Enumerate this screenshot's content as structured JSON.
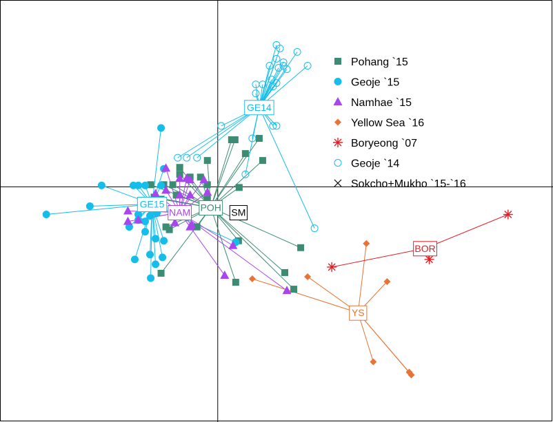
{
  "chart_data": {
    "type": "scatter",
    "title": "",
    "xlabel": "",
    "ylabel": "",
    "xlim": [
      -3.15,
      4.85
    ],
    "ylim": [
      -3.4,
      2.7
    ],
    "axes_lines_at": [
      0,
      0
    ],
    "legend_position": "top-right",
    "series": [
      {
        "name": "Pohang `15",
        "color": "#3b8c72",
        "marker": "square",
        "centroid": {
          "label": "POH",
          "x": -0.1,
          "y": -0.3
        },
        "points": [
          [
            0.2,
            0.68
          ],
          [
            0.6,
            0.7
          ],
          [
            0.4,
            0.48
          ],
          [
            0.65,
            0.38
          ],
          [
            -0.15,
            0.38
          ],
          [
            0.31,
            -0.01
          ],
          [
            -0.97,
            0.03
          ],
          [
            -0.78,
            0.03
          ],
          [
            -0.65,
            0.03
          ],
          [
            -0.6,
            -0.12
          ],
          [
            -0.4,
            0.14
          ],
          [
            -0.25,
            0.14
          ],
          [
            -0.55,
            0.28
          ],
          [
            -0.55,
            0.18
          ],
          [
            -0.82,
            -0.18
          ],
          [
            -0.92,
            -0.15
          ],
          [
            -0.75,
            -0.58
          ],
          [
            -0.7,
            -0.62
          ],
          [
            -0.3,
            -0.58
          ],
          [
            -0.15,
            -0.18
          ],
          [
            0.25,
            0.68
          ],
          [
            0.3,
            -0.78
          ],
          [
            1.2,
            -0.88
          ],
          [
            0.97,
            -1.24
          ],
          [
            1.1,
            -1.48
          ],
          [
            0.26,
            -1.38
          ],
          [
            -0.82,
            -1.25
          ],
          [
            -0.15,
            0.03
          ]
        ]
      },
      {
        "name": "Geoje `15",
        "color": "#14bdea",
        "marker": "circle",
        "centroid": {
          "label": "GE15",
          "x": -0.95,
          "y": -0.25
        },
        "points": [
          [
            -0.82,
            0.85
          ],
          [
            -1.68,
            0.02
          ],
          [
            -1.85,
            -0.28
          ],
          [
            -2.48,
            -0.4
          ],
          [
            -1.15,
            -0.4
          ],
          [
            -1.28,
            -0.58
          ],
          [
            -1.15,
            -0.48
          ],
          [
            -1.05,
            -0.5
          ],
          [
            -0.98,
            -0.42
          ],
          [
            -0.88,
            -0.38
          ],
          [
            -1.22,
            0.02
          ],
          [
            -1.15,
            0.02
          ],
          [
            -1.05,
            0.02
          ],
          [
            -0.82,
            0.02
          ],
          [
            -0.78,
            0.26
          ],
          [
            -1.2,
            -1.05
          ],
          [
            -0.98,
            -0.98
          ],
          [
            -0.9,
            -1.12
          ],
          [
            -0.97,
            -1.32
          ],
          [
            -0.8,
            -1.02
          ],
          [
            0.26,
            -0.8
          ],
          [
            -0.78,
            -0.78
          ],
          [
            -1.05,
            -0.65
          ],
          [
            -0.9,
            -0.75
          ]
        ]
      },
      {
        "name": "Namhae `15",
        "color": "#a845ec",
        "marker": "triangle",
        "centroid": {
          "label": "NAM",
          "x": -0.55,
          "y": -0.37
        },
        "points": [
          [
            -0.75,
            0.27
          ],
          [
            -0.55,
            0.12
          ],
          [
            -0.45,
            0.12
          ],
          [
            -0.2,
            0.1
          ],
          [
            -0.4,
            0.1
          ],
          [
            -0.75,
            -0.05
          ],
          [
            -0.55,
            -0.12
          ],
          [
            -0.4,
            -0.12
          ],
          [
            -1.3,
            -0.35
          ],
          [
            -1.15,
            -0.48
          ],
          [
            -1.3,
            -0.5
          ],
          [
            -0.6,
            -0.42
          ],
          [
            -0.62,
            -0.52
          ],
          [
            -0.4,
            -0.58
          ],
          [
            -0.15,
            -0.08
          ],
          [
            0.22,
            -0.85
          ],
          [
            0.1,
            -1.28
          ],
          [
            1.0,
            -1.5
          ],
          [
            -0.38,
            -0.55
          ],
          [
            -0.9,
            -0.1
          ]
        ]
      },
      {
        "name": "Yellow Sea `16",
        "color": "#e87333",
        "marker": "diamond",
        "centroid": {
          "label": "YS",
          "x": 2.03,
          "y": -1.82
        },
        "points": [
          [
            2.15,
            -0.82
          ],
          [
            1.3,
            -1.3
          ],
          [
            2.45,
            -1.37
          ],
          [
            0.5,
            -1.33
          ],
          [
            2.25,
            -2.53
          ],
          [
            2.77,
            -2.68
          ],
          [
            2.8,
            -2.72
          ]
        ]
      },
      {
        "name": "Boryeong `07",
        "color": "#e21e25",
        "marker": "asterisk",
        "centroid": {
          "label": "BOR",
          "x": 3.0,
          "y": -0.89
        },
        "points": [
          [
            4.2,
            -0.4
          ],
          [
            3.06,
            -1.05
          ],
          [
            1.65,
            -1.16
          ]
        ]
      },
      {
        "name": "Geoje `14",
        "color": "#14bdea",
        "marker": "circle-open",
        "centroid": {
          "label": "GE14",
          "x": 0.6,
          "y": 1.15
        },
        "points": [
          [
            0.85,
            2.05
          ],
          [
            0.9,
            2.0
          ],
          [
            1.15,
            1.95
          ],
          [
            0.85,
            1.85
          ],
          [
            0.95,
            1.8
          ],
          [
            1.3,
            1.75
          ],
          [
            0.95,
            1.75
          ],
          [
            0.75,
            1.75
          ],
          [
            0.88,
            1.72
          ],
          [
            1.0,
            1.7
          ],
          [
            0.78,
            1.55
          ],
          [
            0.85,
            1.5
          ],
          [
            0.55,
            1.48
          ],
          [
            0.65,
            1.48
          ],
          [
            0.8,
            1.45
          ],
          [
            0.55,
            1.35
          ],
          [
            0.8,
            0.88
          ],
          [
            0.85,
            0.88
          ],
          [
            0.05,
            0.88
          ],
          [
            0.5,
            0.7
          ],
          [
            -0.58,
            0.42
          ],
          [
            -0.45,
            0.42
          ],
          [
            -0.3,
            0.42
          ],
          [
            0.4,
            0.18
          ],
          [
            1.4,
            -0.6
          ]
        ]
      },
      {
        "name": "Sokcho+Mukho `15-`16",
        "color": "#000000",
        "marker": "x",
        "centroid": {
          "label": "SM",
          "x": 0.3,
          "y": -0.37
        },
        "points": []
      }
    ]
  }
}
